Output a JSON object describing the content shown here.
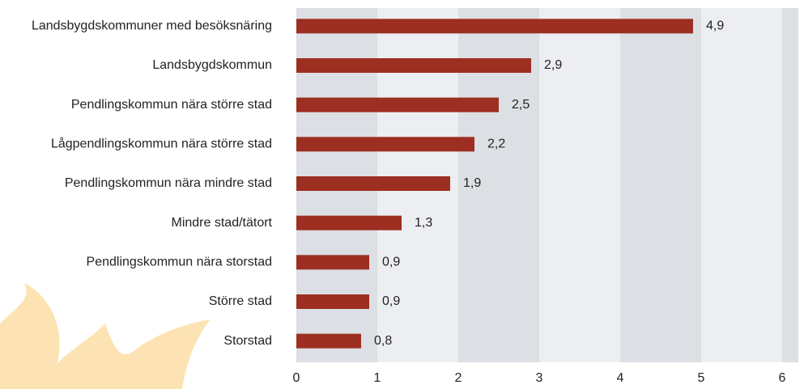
{
  "chart_data": {
    "type": "bar",
    "orientation": "horizontal",
    "categories": [
      "Landsbygdskommuner med besöksnäring",
      "Landsbygdskommun",
      "Pendlingskommun nära större stad",
      "Lågpendlingskommun nära större stad",
      "Pendlingskommun nära mindre stad",
      "Mindre stad/tätort",
      "Pendlingskommun nära storstad",
      "Större stad",
      "Storstad"
    ],
    "values": [
      4.9,
      2.9,
      2.5,
      2.2,
      1.9,
      1.3,
      0.9,
      0.9,
      0.8
    ],
    "value_labels": [
      "4,9",
      "2,9",
      "2,5",
      "2,2",
      "1,9",
      "1,3",
      "0,9",
      "0,9",
      "0,8"
    ],
    "color": "#9c2f22",
    "xlim": [
      0,
      6.2
    ],
    "xticks": [
      0,
      1,
      2,
      3,
      4,
      5,
      6
    ],
    "grid": true
  }
}
